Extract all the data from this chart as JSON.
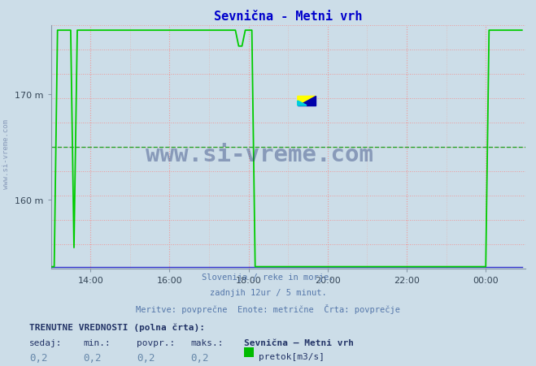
{
  "title": "Sevnična - Metni vrh",
  "title_color": "#0000cc",
  "bg_color": "#ccdde8",
  "plot_bg_color": "#ccdde8",
  "grid_color_major": "#ee9999",
  "grid_color_minor": "#ddbbbb",
  "xlabel_ticks": [
    "14:00",
    "16:00",
    "18:00",
    "20:00",
    "22:00",
    "00:00"
  ],
  "ytick_labels": [
    "160 m",
    "170 m"
  ],
  "ytick_values": [
    160,
    170
  ],
  "ymin": 153.5,
  "ymax": 176.5,
  "xmin": 0,
  "xmax": 144,
  "xtick_positions": [
    12,
    36,
    60,
    84,
    108,
    132
  ],
  "subtitle_lines": [
    "Slovenija / reke in morje.",
    "zadnjih 12ur / 5 minut.",
    "Meritve: povprečne  Enote: metrične  Črta: povprečje"
  ],
  "footer_line1": "TRENUTNE VREDNOSTI (polna črta):",
  "footer_col_headers": [
    "sedaj:",
    "min.:",
    "povpr.:",
    "maks.:",
    "Sevnična – Metni vrh"
  ],
  "footer_vals": [
    "0,2",
    "0,2",
    "0,2",
    "0,2"
  ],
  "footer_legend_label": "pretok[m3/s]",
  "footer_legend_color": "#00bb00",
  "line_color_green": "#00cc00",
  "line_color_blue": "#3333cc",
  "dashed_line_y": 165.0,
  "dashed_line_color": "#009900",
  "watermark_text": "www.si-vreme.com",
  "watermark_color": "#1a2f6e",
  "watermark_alpha": 0.38,
  "watermark_side_text": "www.si-vreme.com",
  "axis_color": "#8899aa",
  "arrow_color": "#cc0000",
  "text_color_subtitle": "#5577aa",
  "text_color_footer": "#223366",
  "text_color_vals": "#6688aa",
  "high_y": 176.0,
  "low_y": 153.7,
  "jump_up_idx": 2,
  "drop_idx": 62,
  "small_drop_idx": 57,
  "small_drop_y": 174.5,
  "rise_idx": 133,
  "n_points": 144
}
